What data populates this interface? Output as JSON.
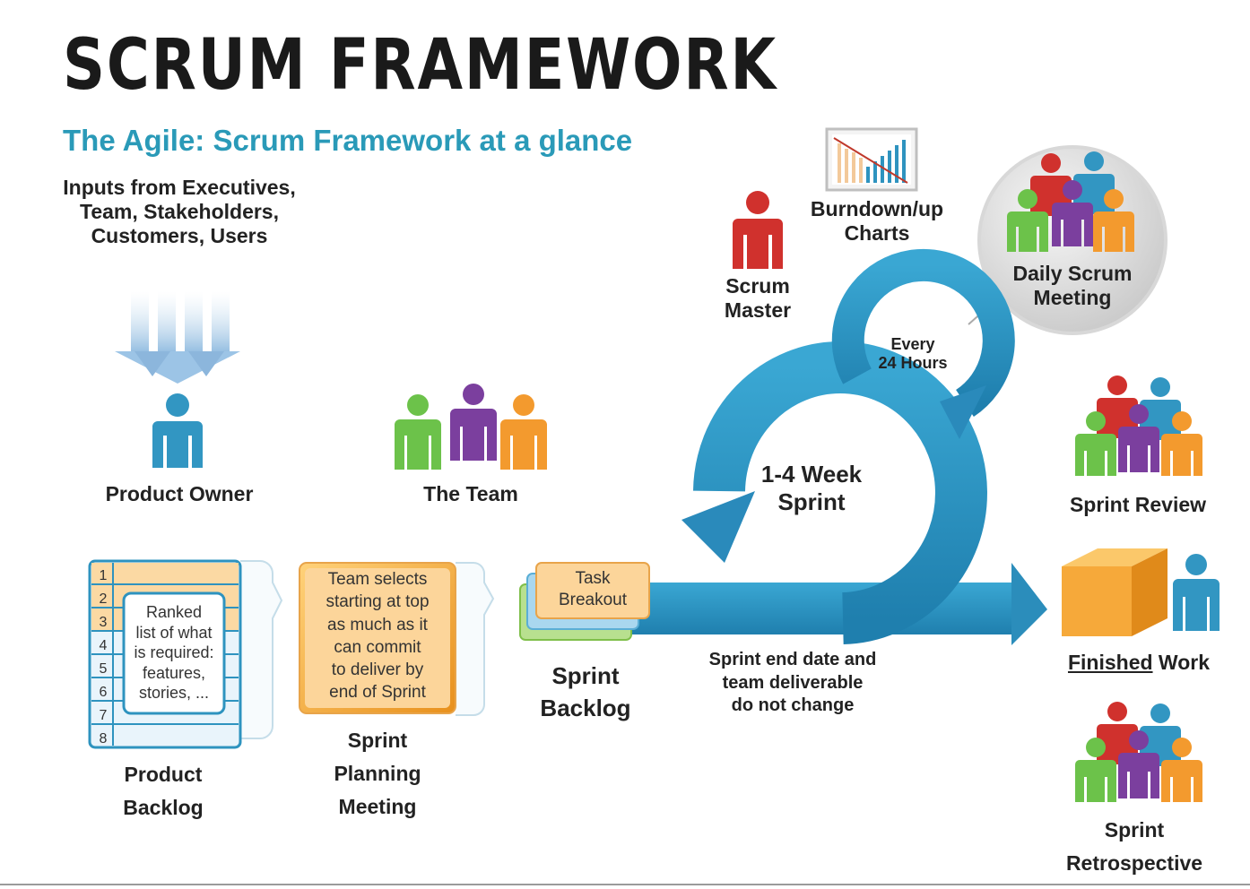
{
  "header": {
    "title": "SCRUM FRAMEWORK",
    "subtitle": "The Agile: Scrum Framework at a glance"
  },
  "inputs": {
    "line1": "Inputs from Executives,",
    "line2": "Team, Stakeholders,",
    "line3": "Customers, Users"
  },
  "roles": {
    "product_owner": "Product Owner",
    "the_team": "The Team",
    "scrum_master_1": "Scrum",
    "scrum_master_2": "Master"
  },
  "burndown": {
    "line1": "Burndown/up",
    "line2": "Charts"
  },
  "daily_scrum": {
    "line1": "Daily Scrum",
    "line2": "Meeting"
  },
  "cycle": {
    "every_1": "Every",
    "every_2": "24 Hours",
    "sprint_1": "1-4 Week",
    "sprint_2": "Sprint"
  },
  "backlog": {
    "rows": [
      "1",
      "2",
      "3",
      "4",
      "5",
      "6",
      "7",
      "8"
    ],
    "note": [
      "Ranked",
      "list of what",
      "is required:",
      "features,",
      "stories, ..."
    ],
    "label_1": "Product",
    "label_2": "Backlog"
  },
  "planning": {
    "note": [
      "Team selects",
      "starting at top",
      "as much as it",
      "can commit",
      "to deliver by",
      "end of Sprint"
    ],
    "label_1": "Sprint",
    "label_2": "Planning",
    "label_3": "Meeting"
  },
  "sprint_backlog": {
    "task_1": "Task",
    "task_2": "Breakout",
    "label_1": "Sprint",
    "label_2": "Backlog"
  },
  "sprint_note": {
    "line1": "Sprint end date and",
    "line2": "team deliverable",
    "line3": "do not change"
  },
  "outcomes": {
    "review": "Sprint Review",
    "finished_1": "Finished",
    "finished_2": "Work",
    "retro_1": "Sprint",
    "retro_2": "Retrospective"
  },
  "colors": {
    "blue": "#2e93bf",
    "orange": "#f5a623",
    "green": "#6cc24a",
    "purple": "#7b3f9e",
    "red": "#d0312d",
    "teal_text": "#2a9ab8"
  }
}
